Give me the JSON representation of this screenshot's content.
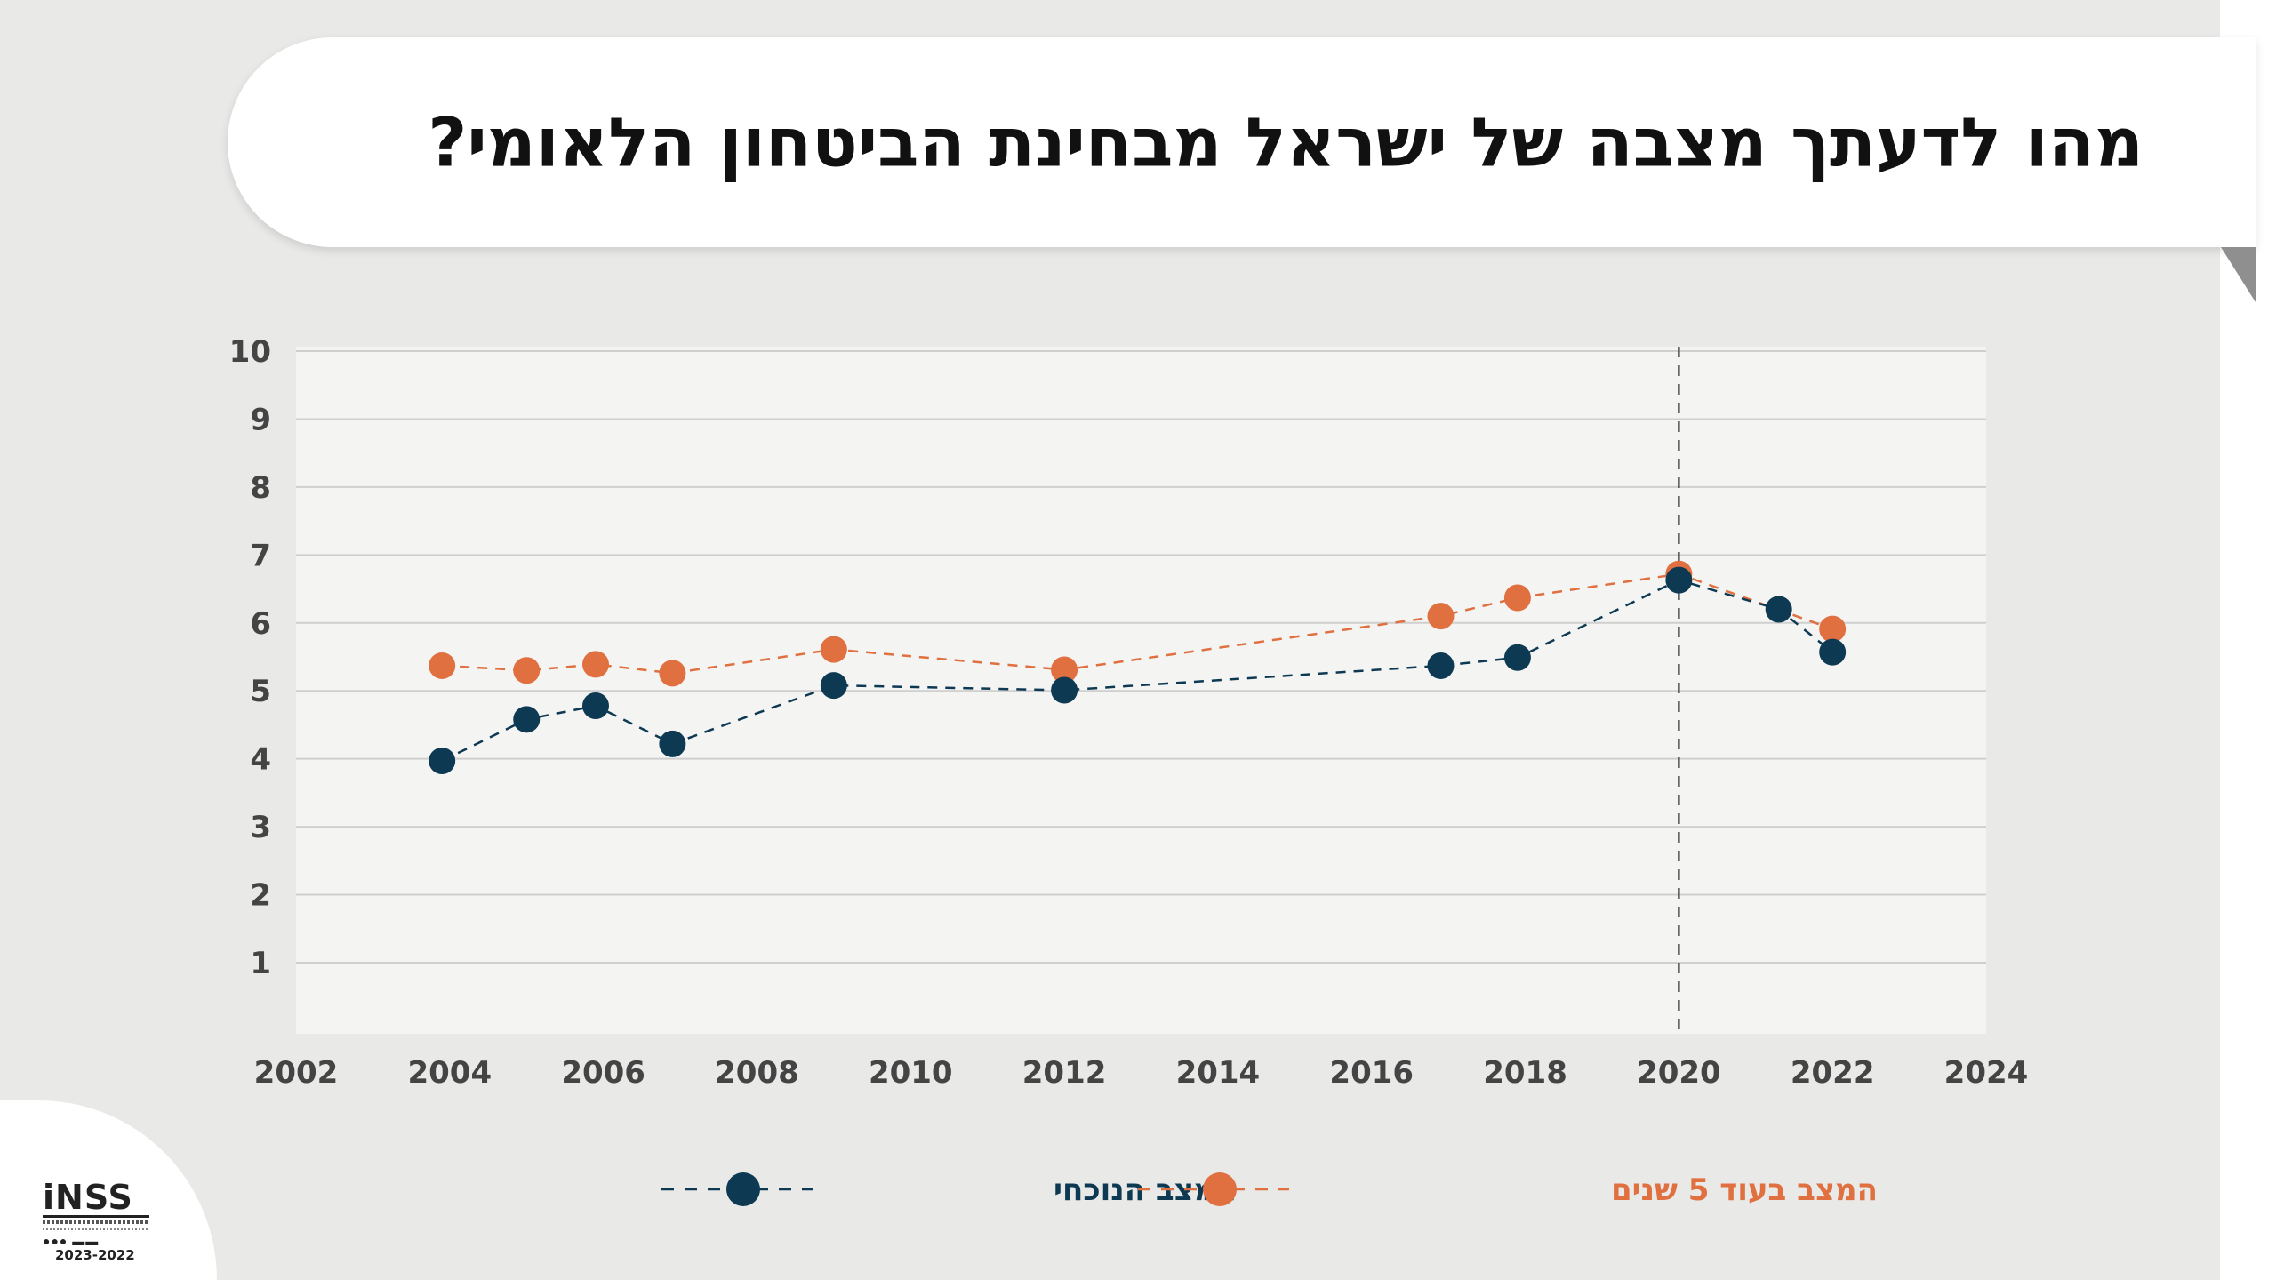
{
  "title": "מהו לדעתך מצבה של ישראל מבחינת הביטחון הלאומי?",
  "logo": {
    "name": "iNSS",
    "years": "2023-2022"
  },
  "colors": {
    "current": "#0d3953",
    "future": "#e0703f",
    "plot_bg": "#f4f4f3",
    "grid": "#cfcfcf"
  },
  "chart_data": {
    "type": "line",
    "title": "מהו לדעתך מצבה של ישראל מבחינת הביטחון הלאומי?",
    "xlabel": "",
    "ylabel": "",
    "xlim": [
      2002,
      2024
    ],
    "ylim": [
      0,
      10
    ],
    "x_ticks": [
      2002,
      2004,
      2006,
      2008,
      2010,
      2012,
      2014,
      2016,
      2018,
      2020,
      2022,
      2024
    ],
    "y_ticks": [
      1,
      2,
      3,
      4,
      5,
      6,
      7,
      8,
      9,
      10
    ],
    "grid": "horizontal",
    "reference_line_x": 2020,
    "legend_position": "bottom",
    "series": [
      {
        "name": "המצב הנוכחי",
        "color": "#0d3953",
        "style": "dashed-with-markers",
        "points": [
          [
            2003.9,
            3.97
          ],
          [
            2005.0,
            4.58
          ],
          [
            2005.9,
            4.78
          ],
          [
            2006.9,
            4.22
          ],
          [
            2009.0,
            5.08
          ],
          [
            2012.0,
            5.01
          ],
          [
            2016.9,
            5.37
          ],
          [
            2017.9,
            5.49
          ],
          [
            2020.0,
            6.63
          ],
          [
            2021.3,
            6.2
          ],
          [
            2022.0,
            5.57
          ]
        ]
      },
      {
        "name": "המצב בעוד 5 שנים",
        "color": "#e0703f",
        "style": "dashed-with-markers",
        "points": [
          [
            2003.9,
            5.37
          ],
          [
            2005.0,
            5.3
          ],
          [
            2005.9,
            5.39
          ],
          [
            2006.9,
            5.26
          ],
          [
            2009.0,
            5.61
          ],
          [
            2012.0,
            5.31
          ],
          [
            2016.9,
            6.1
          ],
          [
            2017.9,
            6.37
          ],
          [
            2020.0,
            6.72
          ],
          [
            2022.0,
            5.91
          ]
        ]
      }
    ]
  }
}
